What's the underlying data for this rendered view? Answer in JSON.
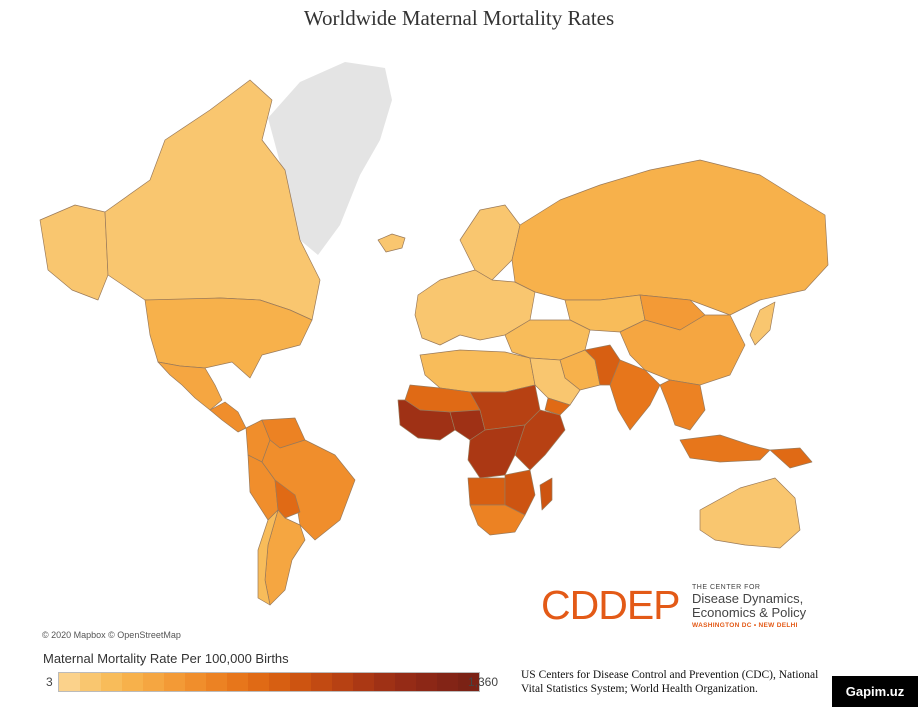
{
  "title": "Worldwide Maternal Mortality Rates",
  "attribution": "© 2020 Mapbox © OpenStreetMap",
  "logo": {
    "main": "CDDEP",
    "tagline_small": "THE CENTER FOR",
    "tagline_line1": "Disease Dynamics,",
    "tagline_line2": "Economics & Policy",
    "locations": "WASHINGTON DC • NEW DELHI",
    "color": "#e35a17"
  },
  "legend": {
    "title": "Maternal Mortality Rate Per 100,000 Births",
    "min_label": "3",
    "max_label": "1,360",
    "colors": [
      "#fbd28b",
      "#f9c66f",
      "#f8bc5a",
      "#f7b14b",
      "#f5a641",
      "#f39a36",
      "#f08e2c",
      "#ec8223",
      "#e7761b",
      "#e06a15",
      "#d75f12",
      "#cd5411",
      "#c24a12",
      "#b74113",
      "#ab3814",
      "#9f3115",
      "#952b16",
      "#8c2716",
      "#832416",
      "#7b2215"
    ]
  },
  "source": {
    "line1": "US Centers for Disease Control and Prevention (CDC), National",
    "line2": "Vital Statistics System; World Health Organization."
  },
  "watermark": "Gapim.uz",
  "map": {
    "no_data_color": "#e4e4e4",
    "border_color": "#9a7a5a",
    "regions": [
      {
        "name": "Alaska",
        "tier": 1
      },
      {
        "name": "Canada",
        "tier": 1
      },
      {
        "name": "United States",
        "tier": 3
      },
      {
        "name": "Mexico",
        "tier": 4
      },
      {
        "name": "Central America",
        "tier": 6
      },
      {
        "name": "Colombia",
        "tier": 6
      },
      {
        "name": "Venezuela",
        "tier": 7
      },
      {
        "name": "Brazil",
        "tier": 6
      },
      {
        "name": "Peru",
        "tier": 6
      },
      {
        "name": "Bolivia",
        "tier": 9
      },
      {
        "name": "Argentina",
        "tier": 4
      },
      {
        "name": "Chile",
        "tier": 2
      },
      {
        "name": "Greenland",
        "tier": 0
      },
      {
        "name": "Iceland",
        "tier": 1
      },
      {
        "name": "Scandinavia",
        "tier": 1
      },
      {
        "name": "Europe",
        "tier": 1
      },
      {
        "name": "Russia",
        "tier": 3
      },
      {
        "name": "Kazakhstan",
        "tier": 2
      },
      {
        "name": "Mongolia",
        "tier": 5
      },
      {
        "name": "China",
        "tier": 4
      },
      {
        "name": "Middle East",
        "tier": 2
      },
      {
        "name": "Iran",
        "tier": 3
      },
      {
        "name": "Afghanistan",
        "tier": 10
      },
      {
        "name": "India",
        "tier": 8
      },
      {
        "name": "Southeast Asia",
        "tier": 7
      },
      {
        "name": "Indonesia",
        "tier": 8
      },
      {
        "name": "Papua New Guinea",
        "tier": 9
      },
      {
        "name": "Japan",
        "tier": 1
      },
      {
        "name": "Australia",
        "tier": 1
      },
      {
        "name": "North Africa",
        "tier": 2
      },
      {
        "name": "Mauritania Mali Niger",
        "tier": 9
      },
      {
        "name": "Chad Sudan",
        "tier": 13
      },
      {
        "name": "West Africa",
        "tier": 15
      },
      {
        "name": "Nigeria",
        "tier": 15
      },
      {
        "name": "East Africa",
        "tier": 13
      },
      {
        "name": "Central Africa",
        "tier": 14
      },
      {
        "name": "Southern Africa",
        "tier": 11
      },
      {
        "name": "South Africa",
        "tier": 7
      },
      {
        "name": "Madagascar",
        "tier": 11
      },
      {
        "name": "Angola",
        "tier": 10
      },
      {
        "name": "Arabian Peninsula",
        "tier": 1
      },
      {
        "name": "Yemen",
        "tier": 9
      }
    ]
  }
}
